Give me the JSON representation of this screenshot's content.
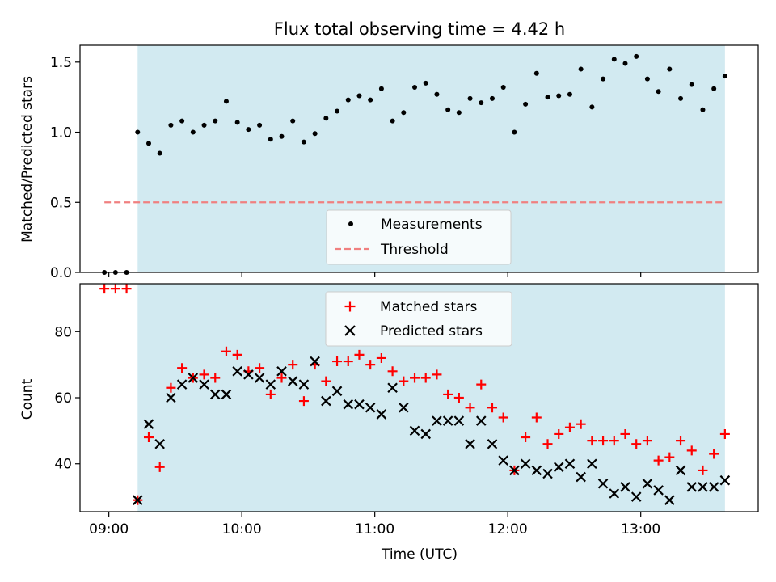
{
  "chart_data": [
    {
      "type": "scatter",
      "title": "Flux total observing time = 4.42 h",
      "xlabel": "",
      "ylabel": "Matched/Predicted stars",
      "ylim": [
        0,
        1.62
      ],
      "yticks": [
        0.0,
        0.5,
        1.0,
        1.5
      ],
      "ytick_labels": [
        "0.0",
        "0.5",
        "1.0",
        "1.5"
      ],
      "xlim": [
        "08:47",
        "13:53"
      ],
      "shaded_interval": [
        "09:13",
        "13:38"
      ],
      "shade_color": "#add8e6",
      "legend_position": "bottom-center",
      "series": [
        {
          "name": "Measurements",
          "color": "#000000",
          "marker": "dot",
          "x": [
            "08:58",
            "09:03",
            "09:08",
            "09:13",
            "09:18",
            "09:23",
            "09:28",
            "09:33",
            "09:38",
            "09:43",
            "09:48",
            "09:53",
            "09:58",
            "10:03",
            "10:08",
            "10:13",
            "10:18",
            "10:23",
            "10:28",
            "10:33",
            "10:38",
            "10:43",
            "10:48",
            "10:53",
            "10:58",
            "11:03",
            "11:08",
            "11:13",
            "11:18",
            "11:23",
            "11:28",
            "11:33",
            "11:38",
            "11:43",
            "11:48",
            "11:53",
            "11:58",
            "12:03",
            "12:08",
            "12:13",
            "12:18",
            "12:23",
            "12:28",
            "12:33",
            "12:38",
            "12:43",
            "12:48",
            "12:53",
            "12:58",
            "13:03",
            "13:08",
            "13:13",
            "13:18",
            "13:23",
            "13:28",
            "13:33",
            "13:38"
          ],
          "y": [
            0.0,
            0.0,
            0.0,
            1.0,
            0.92,
            0.85,
            1.05,
            1.08,
            1.0,
            1.05,
            1.08,
            1.22,
            1.07,
            1.02,
            1.05,
            0.95,
            0.97,
            1.08,
            0.93,
            0.99,
            1.1,
            1.15,
            1.23,
            1.26,
            1.23,
            1.31,
            1.08,
            1.14,
            1.32,
            1.35,
            1.27,
            1.16,
            1.14,
            1.24,
            1.21,
            1.24,
            1.32,
            1.0,
            1.2,
            1.42,
            1.25,
            1.26,
            1.27,
            1.45,
            1.18,
            1.38,
            1.52,
            1.49,
            1.54,
            1.38,
            1.29,
            1.45,
            1.24,
            1.34,
            1.16,
            1.31,
            1.4
          ]
        },
        {
          "name": "Threshold",
          "color": "#f08080",
          "style": "dashed",
          "x": [
            "08:58",
            "13:38"
          ],
          "y": [
            0.5,
            0.5
          ]
        }
      ]
    },
    {
      "type": "scatter",
      "xlabel": "Time (UTC)",
      "ylabel": "Count",
      "ylim": [
        25.5,
        94.5
      ],
      "yticks": [
        40,
        60,
        80
      ],
      "ytick_labels": [
        "40",
        "60",
        "80"
      ],
      "xlim": [
        "08:47",
        "13:53"
      ],
      "xticks": [
        "09:00",
        "10:00",
        "11:00",
        "12:00",
        "13:00"
      ],
      "xtick_labels": [
        "09:00",
        "10:00",
        "11:00",
        "12:00",
        "13:00"
      ],
      "shaded_interval": [
        "09:13",
        "13:38"
      ],
      "shade_color": "#add8e6",
      "legend_position": "top-center",
      "series": [
        {
          "name": "Matched stars",
          "color": "#ff0000",
          "marker": "plus",
          "x": [
            "08:58",
            "09:03",
            "09:08",
            "09:13",
            "09:18",
            "09:23",
            "09:28",
            "09:33",
            "09:38",
            "09:43",
            "09:48",
            "09:53",
            "09:58",
            "10:03",
            "10:08",
            "10:13",
            "10:18",
            "10:23",
            "10:28",
            "10:33",
            "10:38",
            "10:43",
            "10:48",
            "10:53",
            "10:58",
            "11:03",
            "11:08",
            "11:13",
            "11:18",
            "11:23",
            "11:28",
            "11:33",
            "11:38",
            "11:43",
            "11:48",
            "11:53",
            "11:58",
            "12:03",
            "12:08",
            "12:13",
            "12:18",
            "12:23",
            "12:28",
            "12:33",
            "12:38",
            "12:43",
            "12:48",
            "12:53",
            "12:58",
            "13:03",
            "13:08",
            "13:13",
            "13:18",
            "13:23",
            "13:28",
            "13:33",
            "13:38"
          ],
          "y": [
            93,
            93,
            93,
            29,
            48,
            39,
            63,
            69,
            66,
            67,
            66,
            74,
            73,
            68,
            69,
            61,
            66,
            70,
            59,
            70,
            65,
            71,
            71,
            73,
            70,
            72,
            68,
            65,
            66,
            66,
            67,
            61,
            60,
            57,
            64,
            57,
            54,
            38,
            48,
            54,
            46,
            49,
            51,
            52,
            47,
            47,
            47,
            49,
            46,
            47,
            41,
            42,
            47,
            44,
            38,
            43,
            49
          ]
        },
        {
          "name": "Predicted stars",
          "color": "#000000",
          "marker": "x",
          "x": [
            "09:13",
            "09:18",
            "09:23",
            "09:28",
            "09:33",
            "09:38",
            "09:43",
            "09:48",
            "09:53",
            "09:58",
            "10:03",
            "10:08",
            "10:13",
            "10:18",
            "10:23",
            "10:28",
            "10:33",
            "10:38",
            "10:43",
            "10:48",
            "10:53",
            "10:58",
            "11:03",
            "11:08",
            "11:13",
            "11:18",
            "11:23",
            "11:28",
            "11:33",
            "11:38",
            "11:43",
            "11:48",
            "11:53",
            "11:58",
            "12:03",
            "12:08",
            "12:13",
            "12:18",
            "12:23",
            "12:28",
            "12:33",
            "12:38",
            "12:43",
            "12:48",
            "12:53",
            "12:58",
            "13:03",
            "13:08",
            "13:13",
            "13:18",
            "13:23",
            "13:28",
            "13:33",
            "13:38"
          ],
          "y": [
            29,
            52,
            46,
            60,
            64,
            66,
            64,
            61,
            61,
            68,
            67,
            66,
            64,
            68,
            65,
            64,
            71,
            59,
            62,
            58,
            58,
            57,
            55,
            63,
            57,
            50,
            49,
            53,
            53,
            53,
            46,
            53,
            46,
            41,
            38,
            40,
            38,
            37,
            39,
            40,
            36,
            40,
            34,
            31,
            33,
            30,
            34,
            32,
            29,
            38,
            33,
            33,
            33,
            35
          ]
        }
      ]
    }
  ]
}
